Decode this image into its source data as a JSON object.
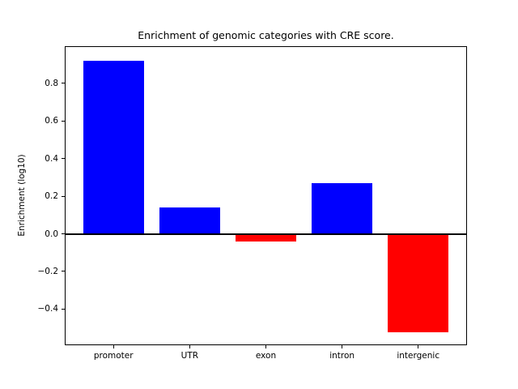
{
  "chart_data": {
    "type": "bar",
    "title": "Enrichment of genomic categories with CRE score.",
    "xlabel": "",
    "ylabel": "Enrichment (log10)",
    "categories": [
      "promoter",
      "UTR",
      "exon",
      "intron",
      "intergenic"
    ],
    "values": [
      0.925,
      0.145,
      -0.035,
      0.275,
      -0.52
    ],
    "bar_width": 0.8,
    "xlim": [
      -0.64,
      4.64
    ],
    "ylim": [
      -0.592,
      0.997
    ],
    "yticks": [
      {
        "label": "0.8",
        "value": 0.8
      },
      {
        "label": "0.6",
        "value": 0.6
      },
      {
        "label": "0.4",
        "value": 0.4
      },
      {
        "label": "0.2",
        "value": 0.2
      },
      {
        "label": "0.0",
        "value": 0.0
      },
      {
        "label": "−0.2",
        "value": -0.2
      },
      {
        "label": "−0.4",
        "value": -0.4
      }
    ],
    "grid": false,
    "legend": null,
    "colors": {
      "positive": "#0000ff",
      "negative": "#ff0000",
      "zero_line": "#000000",
      "axes": "#000000",
      "background": "#ffffff"
    }
  }
}
